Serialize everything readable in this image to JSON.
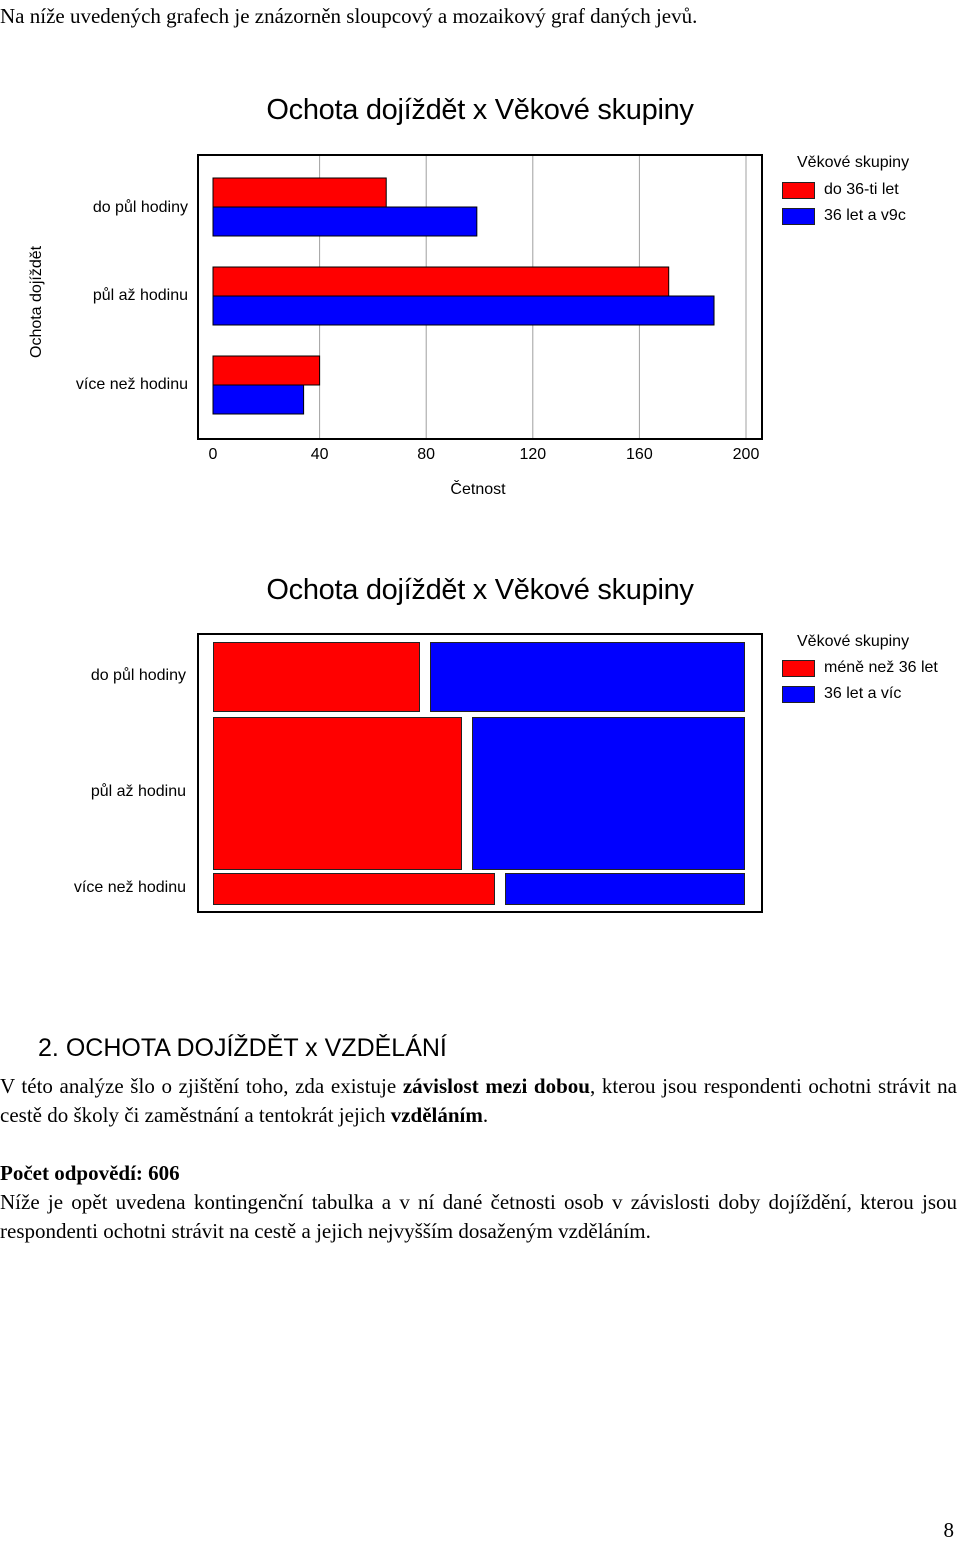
{
  "intro": "Na níže uvedených grafech je znázorněn sloupcový a mozaikový graf daných jevů.",
  "chart_data": [
    {
      "type": "bar",
      "orientation": "horizontal",
      "title": "Ochota dojíždět x Věkové skupiny",
      "xlabel": "Četnost",
      "ylabel": "Ochota dojíždět",
      "categories": [
        "do půl hodiny",
        "půl až hodinu",
        "více než hodinu"
      ],
      "xlim": [
        0,
        206
      ],
      "xticks": [
        "0",
        "40",
        "80",
        "120",
        "160",
        "200"
      ],
      "grid": true,
      "legend_title": "Věkové skupiny",
      "legend_position": "right",
      "series": [
        {
          "name": "do 36-ti let",
          "color": "#ff0000",
          "values": [
            65,
            171,
            40
          ]
        },
        {
          "name": "36 let a v9c",
          "color": "#0000ff",
          "values": [
            99,
            188,
            34
          ]
        }
      ]
    },
    {
      "type": "mosaic",
      "title": "Ochota dojíždět x Věkové skupiny",
      "categories": [
        "do půl hodiny",
        "půl až hodinu",
        "více než hodinu"
      ],
      "legend_title": "Věkové skupiny",
      "legend_position": "right",
      "series": [
        {
          "name": "méně než 36 let",
          "color": "#ff0000",
          "values": [
            65,
            171,
            40
          ]
        },
        {
          "name": "36 let a víc",
          "color": "#0000ff",
          "values": [
            99,
            188,
            34
          ]
        }
      ]
    }
  ],
  "section": {
    "number": "2.",
    "title": "OCHOTA DOJÍŽDĚT x VZDĚLÁNÍ"
  },
  "paragraph1": {
    "part1": "V této analýze šlo o zjištění  toho, zda existuje ",
    "bold1": "závislost mezi dobou",
    "part2": ", kterou jsou respondenti ochotni strávit na cestě do školy či zaměstnání a tentokrát jejich ",
    "bold2": "vzděláním",
    "part3": "."
  },
  "answers_count": "Počet odpovědí: 606",
  "paragraph2": "Níže je opět uvedena kontingenční tabulka a v ní dané četnosti osob v závislosti doby dojíždění, kterou jsou respondenti ochotni strávit na cestě a jejich nejvyšším dosaženým vzděláním.",
  "page_number": "8"
}
